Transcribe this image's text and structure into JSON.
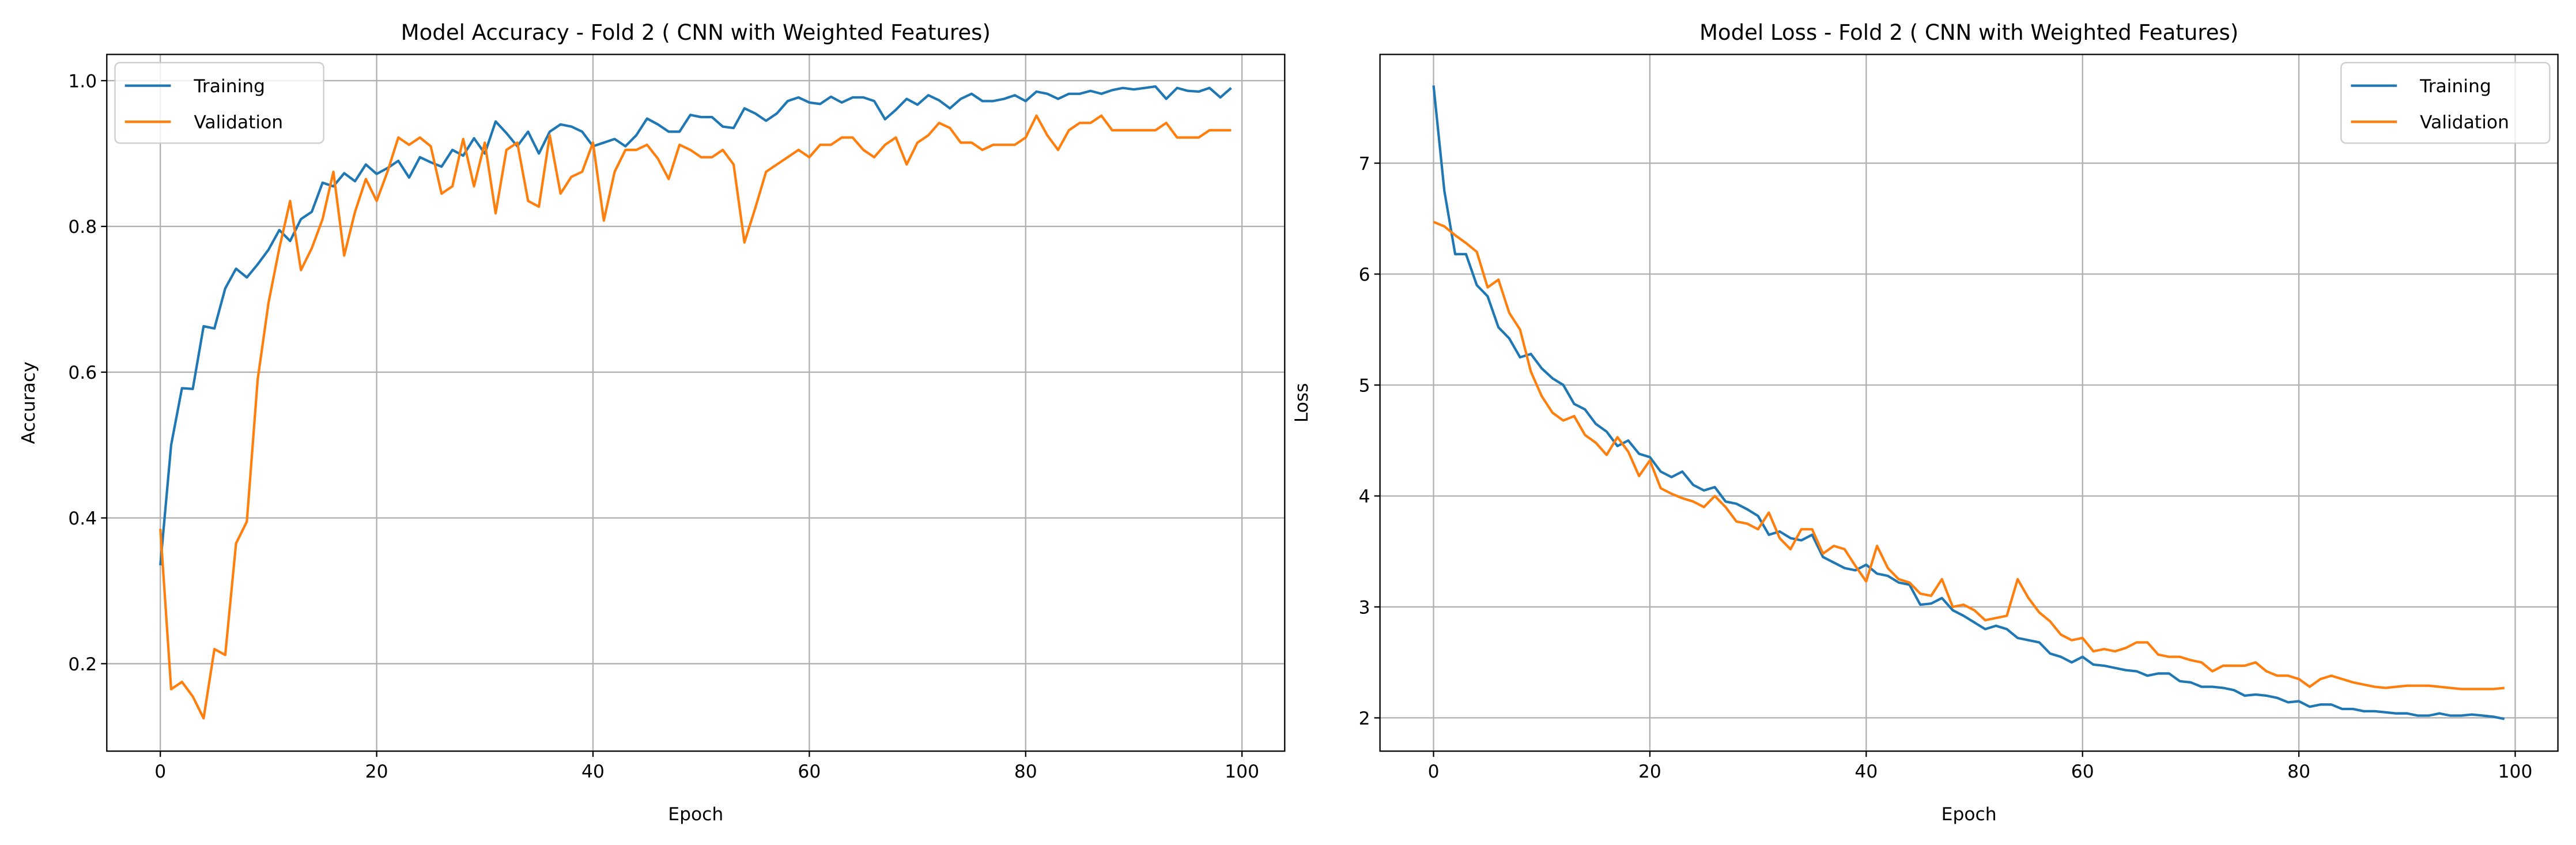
{
  "chart_data": [
    {
      "type": "line",
      "title": "Model Accuracy - Fold 2 ( CNN with Weighted Features)",
      "x_label": "Epoch",
      "y_label": "Accuracy",
      "x": [
        0,
        1,
        2,
        3,
        4,
        5,
        6,
        7,
        8,
        9,
        10,
        11,
        12,
        13,
        14,
        15,
        16,
        17,
        18,
        19,
        20,
        21,
        22,
        23,
        24,
        25,
        26,
        27,
        28,
        29,
        30,
        31,
        32,
        33,
        34,
        35,
        36,
        37,
        38,
        39,
        40,
        41,
        42,
        43,
        44,
        45,
        46,
        47,
        48,
        49,
        50,
        51,
        52,
        53,
        54,
        55,
        56,
        57,
        58,
        59,
        60,
        61,
        62,
        63,
        64,
        65,
        66,
        67,
        68,
        69,
        70,
        71,
        72,
        73,
        74,
        75,
        76,
        77,
        78,
        79,
        80,
        81,
        82,
        83,
        84,
        85,
        86,
        87,
        88,
        89,
        90,
        91,
        92,
        93,
        94,
        95,
        96,
        97,
        98,
        99
      ],
      "series": [
        {
          "name": "Training",
          "color": "#1f77b4",
          "values": [
            0.335,
            0.5,
            0.578,
            0.577,
            0.663,
            0.66,
            0.715,
            0.742,
            0.73,
            0.748,
            0.768,
            0.795,
            0.78,
            0.81,
            0.82,
            0.86,
            0.855,
            0.873,
            0.862,
            0.885,
            0.872,
            0.88,
            0.89,
            0.867,
            0.895,
            0.888,
            0.882,
            0.905,
            0.897,
            0.921,
            0.9,
            0.944,
            0.928,
            0.91,
            0.93,
            0.9,
            0.93,
            0.94,
            0.937,
            0.93,
            0.91,
            0.915,
            0.92,
            0.91,
            0.925,
            0.948,
            0.94,
            0.93,
            0.93,
            0.953,
            0.95,
            0.95,
            0.937,
            0.935,
            0.962,
            0.955,
            0.945,
            0.955,
            0.972,
            0.977,
            0.97,
            0.968,
            0.978,
            0.97,
            0.977,
            0.977,
            0.972,
            0.947,
            0.96,
            0.975,
            0.967,
            0.98,
            0.973,
            0.962,
            0.975,
            0.982,
            0.972,
            0.972,
            0.975,
            0.98,
            0.972,
            0.985,
            0.982,
            0.975,
            0.982,
            0.982,
            0.986,
            0.982,
            0.987,
            0.99,
            0.988,
            0.99,
            0.992,
            0.975,
            0.99,
            0.986,
            0.985,
            0.99,
            0.977,
            0.99
          ]
        },
        {
          "name": "Validation",
          "color": "#ff7f0e",
          "values": [
            0.385,
            0.165,
            0.175,
            0.155,
            0.125,
            0.22,
            0.212,
            0.365,
            0.395,
            0.59,
            0.695,
            0.77,
            0.835,
            0.74,
            0.77,
            0.81,
            0.875,
            0.76,
            0.82,
            0.865,
            0.835,
            0.875,
            0.922,
            0.912,
            0.922,
            0.91,
            0.845,
            0.855,
            0.92,
            0.855,
            0.915,
            0.818,
            0.905,
            0.915,
            0.835,
            0.827,
            0.925,
            0.845,
            0.868,
            0.875,
            0.915,
            0.808,
            0.875,
            0.905,
            0.905,
            0.912,
            0.893,
            0.865,
            0.912,
            0.905,
            0.895,
            0.895,
            0.905,
            0.885,
            0.778,
            0.825,
            0.875,
            0.885,
            0.895,
            0.905,
            0.895,
            0.912,
            0.912,
            0.922,
            0.922,
            0.905,
            0.895,
            0.912,
            0.922,
            0.885,
            0.915,
            0.925,
            0.942,
            0.935,
            0.915,
            0.915,
            0.905,
            0.912,
            0.912,
            0.912,
            0.922,
            0.952,
            0.925,
            0.905,
            0.932,
            0.942,
            0.942,
            0.952,
            0.932,
            0.932,
            0.932,
            0.932,
            0.932,
            0.942,
            0.922,
            0.922,
            0.922,
            0.932,
            0.932,
            0.932
          ]
        }
      ],
      "xlim": [
        -4.95,
        103.95
      ],
      "xticks": [
        0,
        20,
        40,
        60,
        80,
        100
      ],
      "ylim": [
        0.08,
        1.036
      ],
      "yticks": [
        0.2,
        0.4,
        0.6,
        0.8,
        {
          "value": 1,
          "label": "1.0"
        }
      ],
      "grid": true,
      "legend": "upper left"
    },
    {
      "type": "line",
      "title": "Model Loss - Fold 2 ( CNN with Weighted Features)",
      "x_label": "Epoch",
      "y_label": "Loss",
      "x": [
        0,
        1,
        2,
        3,
        4,
        5,
        6,
        7,
        8,
        9,
        10,
        11,
        12,
        13,
        14,
        15,
        16,
        17,
        18,
        19,
        20,
        21,
        22,
        23,
        24,
        25,
        26,
        27,
        28,
        29,
        30,
        31,
        32,
        33,
        34,
        35,
        36,
        37,
        38,
        39,
        40,
        41,
        42,
        43,
        44,
        45,
        46,
        47,
        48,
        49,
        50,
        51,
        52,
        53,
        54,
        55,
        56,
        57,
        58,
        59,
        60,
        61,
        62,
        63,
        64,
        65,
        66,
        67,
        68,
        69,
        70,
        71,
        72,
        73,
        74,
        75,
        76,
        77,
        78,
        79,
        80,
        81,
        82,
        83,
        84,
        85,
        86,
        87,
        88,
        89,
        90,
        91,
        92,
        93,
        94,
        95,
        96,
        97,
        98,
        99
      ],
      "series": [
        {
          "name": "Training",
          "color": "#1f77b4",
          "values": [
            7.7,
            6.75,
            6.18,
            6.18,
            5.9,
            5.8,
            5.52,
            5.42,
            5.25,
            5.28,
            5.15,
            5.06,
            5.0,
            4.83,
            4.78,
            4.65,
            4.58,
            4.45,
            4.5,
            4.38,
            4.35,
            4.22,
            4.17,
            4.22,
            4.1,
            4.05,
            4.08,
            3.95,
            3.93,
            3.88,
            3.82,
            3.65,
            3.68,
            3.62,
            3.6,
            3.65,
            3.45,
            3.4,
            3.35,
            3.33,
            3.38,
            3.3,
            3.28,
            3.22,
            3.2,
            3.02,
            3.03,
            3.08,
            2.97,
            2.92,
            2.86,
            2.8,
            2.83,
            2.8,
            2.72,
            2.7,
            2.68,
            2.58,
            2.55,
            2.5,
            2.55,
            2.48,
            2.47,
            2.45,
            2.43,
            2.42,
            2.38,
            2.4,
            2.4,
            2.33,
            2.32,
            2.28,
            2.28,
            2.27,
            2.25,
            2.2,
            2.21,
            2.2,
            2.18,
            2.14,
            2.15,
            2.1,
            2.12,
            2.12,
            2.08,
            2.08,
            2.06,
            2.06,
            2.05,
            2.04,
            2.04,
            2.02,
            2.02,
            2.04,
            2.02,
            2.02,
            2.03,
            2.02,
            2.01,
            1.99
          ]
        },
        {
          "name": "Validation",
          "color": "#ff7f0e",
          "values": [
            6.47,
            6.43,
            6.35,
            6.28,
            6.2,
            5.88,
            5.95,
            5.65,
            5.5,
            5.12,
            4.9,
            4.75,
            4.68,
            4.72,
            4.55,
            4.48,
            4.37,
            4.53,
            4.4,
            4.18,
            4.32,
            4.07,
            4.02,
            3.98,
            3.95,
            3.9,
            4.0,
            3.9,
            3.77,
            3.75,
            3.7,
            3.85,
            3.62,
            3.52,
            3.7,
            3.7,
            3.48,
            3.55,
            3.52,
            3.37,
            3.23,
            3.55,
            3.35,
            3.25,
            3.22,
            3.12,
            3.1,
            3.25,
            3.0,
            3.02,
            2.97,
            2.88,
            2.9,
            2.92,
            3.25,
            3.08,
            2.95,
            2.87,
            2.75,
            2.7,
            2.72,
            2.6,
            2.62,
            2.6,
            2.63,
            2.68,
            2.68,
            2.57,
            2.55,
            2.55,
            2.52,
            2.5,
            2.42,
            2.47,
            2.47,
            2.47,
            2.5,
            2.42,
            2.38,
            2.38,
            2.35,
            2.28,
            2.35,
            2.38,
            2.35,
            2.32,
            2.3,
            2.28,
            2.27,
            2.28,
            2.29,
            2.29,
            2.29,
            2.28,
            2.27,
            2.26,
            2.26,
            2.26,
            2.26,
            2.27
          ]
        }
      ],
      "xlim": [
        -4.95,
        103.95
      ],
      "xticks": [
        0,
        20,
        40,
        60,
        80,
        100
      ],
      "ylim": [
        1.7,
        7.98
      ],
      "yticks": [
        2,
        3,
        4,
        5,
        6,
        7
      ],
      "grid": true,
      "legend": "upper right"
    }
  ]
}
